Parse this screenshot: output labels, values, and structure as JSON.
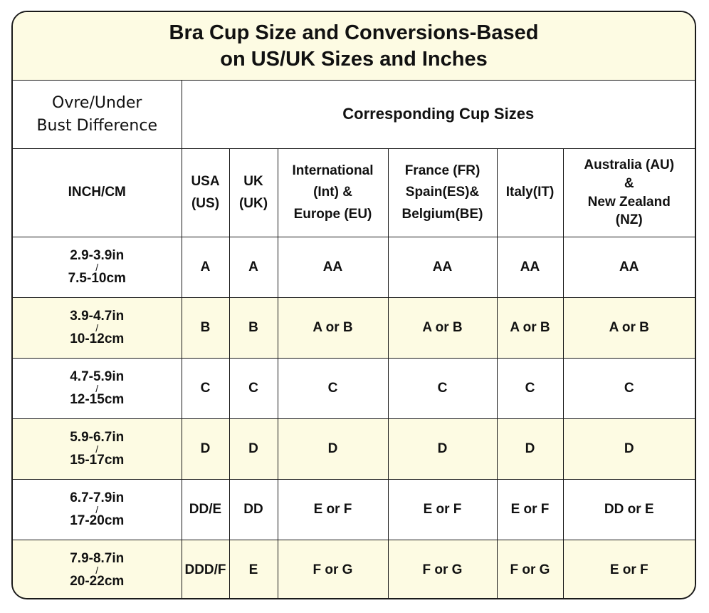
{
  "title_line1": "Bra Cup Size and Conversions-Based",
  "title_line2": "on US/UK Sizes and Inches",
  "header": {
    "left_line1": "Ovre/Under",
    "left_line2": "Bust Difference",
    "right": "Corresponding Cup Sizes"
  },
  "columns": [
    [
      "INCH/CM"
    ],
    [
      "USA",
      "(US)"
    ],
    [
      "UK",
      "(UK)"
    ],
    [
      "International",
      "(Int) &",
      "Europe (EU)"
    ],
    [
      "France (FR)",
      "Spain(ES)&",
      "Belgium(BE)"
    ],
    [
      "Italy(IT)"
    ],
    [
      "Australia (AU)",
      "&",
      "New Zealand",
      "(NZ)"
    ]
  ],
  "rows": [
    {
      "in": "2.9-3.9in",
      "cm": "7.5-10cm",
      "cells": [
        "A",
        "A",
        "AA",
        "AA",
        "AA",
        "AA"
      ]
    },
    {
      "in": "3.9-4.7in",
      "cm": "10-12cm",
      "cells": [
        "B",
        "B",
        "A or B",
        "A or B",
        "A or B",
        "A or B"
      ]
    },
    {
      "in": "4.7-5.9in",
      "cm": "12-15cm",
      "cells": [
        "C",
        "C",
        "C",
        "C",
        "C",
        "C"
      ]
    },
    {
      "in": "5.9-6.7in",
      "cm": "15-17cm",
      "cells": [
        "D",
        "D",
        "D",
        "D",
        "D",
        "D"
      ]
    },
    {
      "in": "6.7-7.9in",
      "cm": "17-20cm",
      "cells": [
        "DD/E",
        "DD",
        "E or F",
        "E or F",
        "E or F",
        "DD or E"
      ]
    },
    {
      "in": "7.9-8.7in",
      "cm": "20-22cm",
      "cells": [
        "DDD/F",
        "E",
        "F or G",
        "F or G",
        "F or G",
        "E or F"
      ]
    }
  ],
  "separator": "/",
  "colors": {
    "highlight": "#fdfbe3",
    "border": "#1a1a1a"
  }
}
